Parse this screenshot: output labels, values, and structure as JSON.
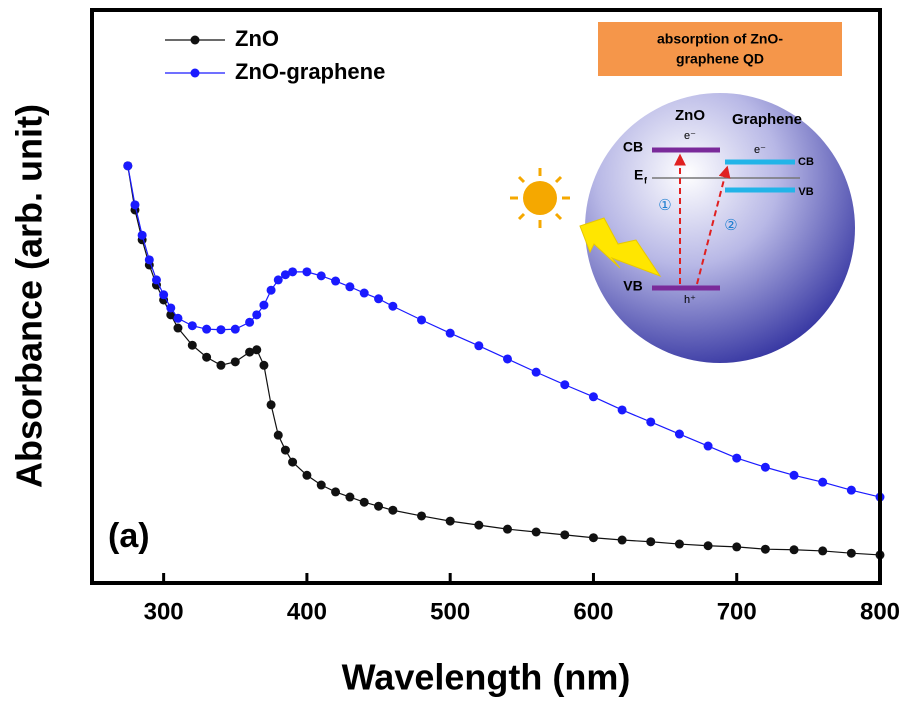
{
  "chart_data": {
    "type": "scatter",
    "x_label": "Wavelength (nm)",
    "y_label": "Absorbance (arb. unit)",
    "annotation": "(a)",
    "xlim": [
      250,
      800
    ],
    "xticks": [
      300,
      400,
      500,
      600,
      700,
      800
    ],
    "ylim": [
      0,
      100
    ],
    "x": [
      275,
      280,
      285,
      290,
      295,
      300,
      305,
      310,
      320,
      330,
      340,
      350,
      360,
      365,
      370,
      375,
      380,
      385,
      390,
      400,
      410,
      420,
      430,
      440,
      450,
      460,
      480,
      500,
      520,
      540,
      560,
      580,
      600,
      620,
      640,
      660,
      680,
      700,
      720,
      740,
      760,
      780,
      800
    ],
    "series": [
      {
        "name": "ZnO",
        "color": "#111111",
        "values": [
          72.8,
          65.1,
          59.9,
          55.5,
          52.0,
          49.4,
          46.8,
          44.5,
          41.5,
          39.4,
          38.0,
          38.6,
          40.3,
          40.7,
          38.0,
          31.1,
          25.8,
          23.2,
          21.1,
          18.8,
          17.1,
          15.9,
          15.0,
          14.1,
          13.4,
          12.7,
          11.7,
          10.8,
          10.1,
          9.4,
          8.9,
          8.4,
          7.9,
          7.5,
          7.2,
          6.8,
          6.5,
          6.3,
          5.9,
          5.8,
          5.6,
          5.2,
          4.9
        ]
      },
      {
        "name": "ZnO-graphene",
        "color": "#1a1aff",
        "values": [
          72.8,
          66.0,
          60.7,
          56.4,
          52.9,
          50.3,
          48.0,
          46.2,
          44.9,
          44.3,
          44.2,
          44.3,
          45.5,
          46.8,
          48.5,
          51.1,
          52.9,
          53.8,
          54.3,
          54.3,
          53.6,
          52.7,
          51.7,
          50.6,
          49.6,
          48.3,
          45.9,
          43.6,
          41.4,
          39.1,
          36.8,
          34.6,
          32.5,
          30.2,
          28.1,
          26.0,
          23.9,
          21.8,
          20.2,
          18.8,
          17.6,
          16.2,
          15.0
        ]
      }
    ],
    "legend": "upper left",
    "inset": {
      "title_lines": [
        "absorption of ZnO-",
        "graphene QD"
      ],
      "zno": "ZnO",
      "graphene": "Graphene",
      "cb": "CB",
      "vb": "VB",
      "electron": "e⁻",
      "hole": "h⁺",
      "fermi": "E",
      "fermi_sub": "f",
      "graphene_cb": "CB",
      "graphene_vb": "VB",
      "graphene_electron": "e⁻",
      "path1": "①",
      "path2": "②"
    }
  }
}
